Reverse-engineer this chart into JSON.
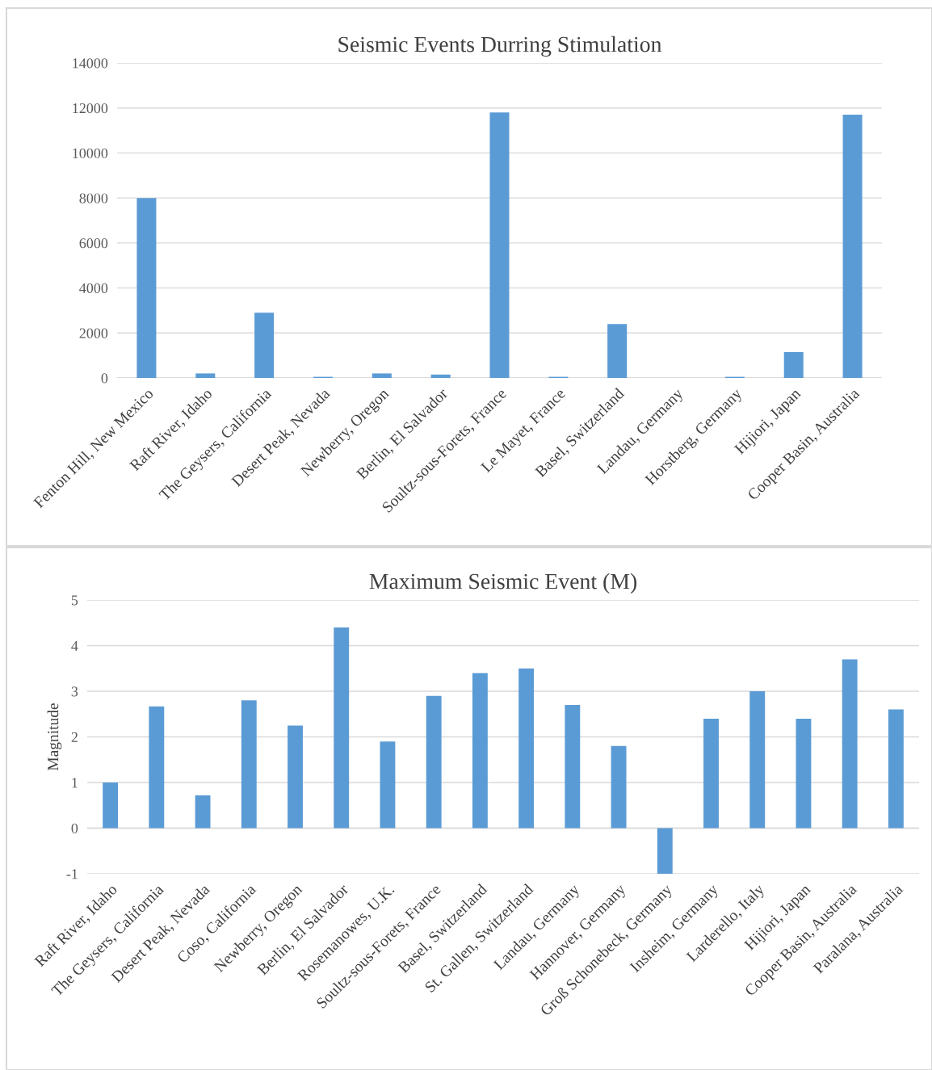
{
  "chart_data": [
    {
      "type": "bar",
      "title": "Seismic Events Durring Stimulation",
      "categories": [
        "Fenton Hill, New Mexico",
        "Raft River, Idaho",
        "The Geysers, California",
        "Desert Peak, Nevada",
        "Newberry, Oregon",
        "Berlin, El Salvador",
        "Soultz-sous-Forets, France",
        "Le Mayet, France",
        "Basel, Switzerland",
        "Landau, Germany",
        "Horstberg, Germany",
        "Hijiori, Japan",
        "Cooper Basin, Australia"
      ],
      "values": [
        8000,
        200,
        2900,
        50,
        200,
        150,
        11800,
        50,
        2400,
        0,
        50,
        1150,
        11700
      ],
      "color": "#5b9bd5",
      "ylim": [
        0,
        14000
      ],
      "yticks": [
        0,
        2000,
        4000,
        6000,
        8000,
        10000,
        12000,
        14000
      ],
      "grid": "y"
    },
    {
      "type": "bar",
      "title": "Maximum Seismic Event (M)",
      "ylabel": "Magnitude",
      "categories": [
        "Raft River, Idaho",
        "The Geysers, California",
        "Desert Peak, Nevada",
        "Coso, California",
        "Newberry, Oregon",
        "Berlin, El Salvador",
        "Rosemanowes, U.K.",
        "Soultz-sous-Forets, France",
        "Basel, Switzerland",
        "St. Gallen, Switzerland",
        "Landau, Germany",
        "Hannover, Germany",
        "Groß Schonebeck, Germany",
        "Insheim, Germany",
        "Larderello, Italy",
        "Hijiori, Japan",
        "Cooper Basin, Australia",
        "Paralana, Australia"
      ],
      "values": [
        1.0,
        2.67,
        0.72,
        2.8,
        2.25,
        4.4,
        1.9,
        2.9,
        3.4,
        3.5,
        2.7,
        1.8,
        -1.0,
        2.4,
        3.0,
        2.4,
        3.7,
        2.6
      ],
      "color": "#5b9bd5",
      "ylim": [
        -1,
        5
      ],
      "yticks": [
        {
          "value": -1,
          "label": "-1"
        },
        0,
        1,
        2,
        3,
        4,
        5
      ],
      "grid": "y"
    }
  ]
}
